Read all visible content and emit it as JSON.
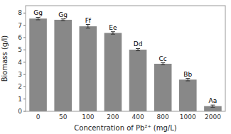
{
  "chart_data": {
    "type": "bar",
    "categories": [
      "0",
      "50",
      "100",
      "200",
      "400",
      "800",
      "1000",
      "2000"
    ],
    "values": [
      7.55,
      7.45,
      6.92,
      6.38,
      5.02,
      3.87,
      2.58,
      0.42
    ],
    "errors": [
      0.1,
      0.07,
      0.15,
      0.1,
      0.09,
      0.08,
      0.1,
      0.09
    ],
    "annotations": [
      "Gg",
      "Gg",
      "Ff",
      "Ee",
      "Dd",
      "Cc",
      "Bb",
      "Aa"
    ],
    "color": "#888888",
    "ylim": [
      0,
      8.6
    ],
    "yticks": [
      0,
      1,
      2,
      3,
      4,
      5,
      6,
      7,
      8
    ],
    "ylabel": "Biomass (g/l)",
    "xlabel": "Concentration of Pb²⁺ (mg/L)",
    "grid": false
  }
}
